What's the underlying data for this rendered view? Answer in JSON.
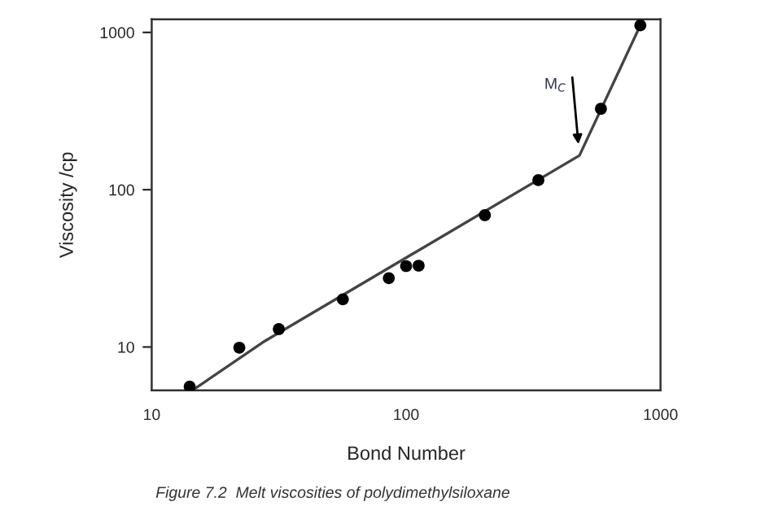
{
  "chart_data": {
    "type": "scatter",
    "xlabel": "Bond Number",
    "ylabel": "Viscosity /cp",
    "log": "xy",
    "grid": false,
    "legend": false,
    "xlim": [
      10,
      1000
    ],
    "xticks": [
      10,
      100,
      1000
    ],
    "ylim": [
      5.3,
      1210
    ],
    "yticks": [
      10,
      100,
      1000
    ],
    "series": [
      {
        "color": "#000000",
        "marker": "circle",
        "x": [
          14.1,
          22.1,
          31.6,
          56.4,
          85.5,
          100,
          112,
          204,
          331,
          583,
          833
        ],
        "values": [
          5.6,
          9.9,
          13.0,
          20.1,
          27.4,
          32.7,
          32.9,
          68.9,
          115,
          327,
          1109
        ]
      },
      {
        "type": "line",
        "color": "#444444",
        "marker": "none",
        "line_style": "solid",
        "x": [
          14.7,
          27.3,
          480,
          833
        ],
        "values": [
          5.4,
          10.7,
          165,
          1109
        ]
      }
    ],
    "annotations": [
      {
        "text": "M$_{C}$",
        "x": 480,
        "y": 165
      },
      "Figure 7.2  Melt viscosities of polydimethylsiloxane"
    ]
  }
}
